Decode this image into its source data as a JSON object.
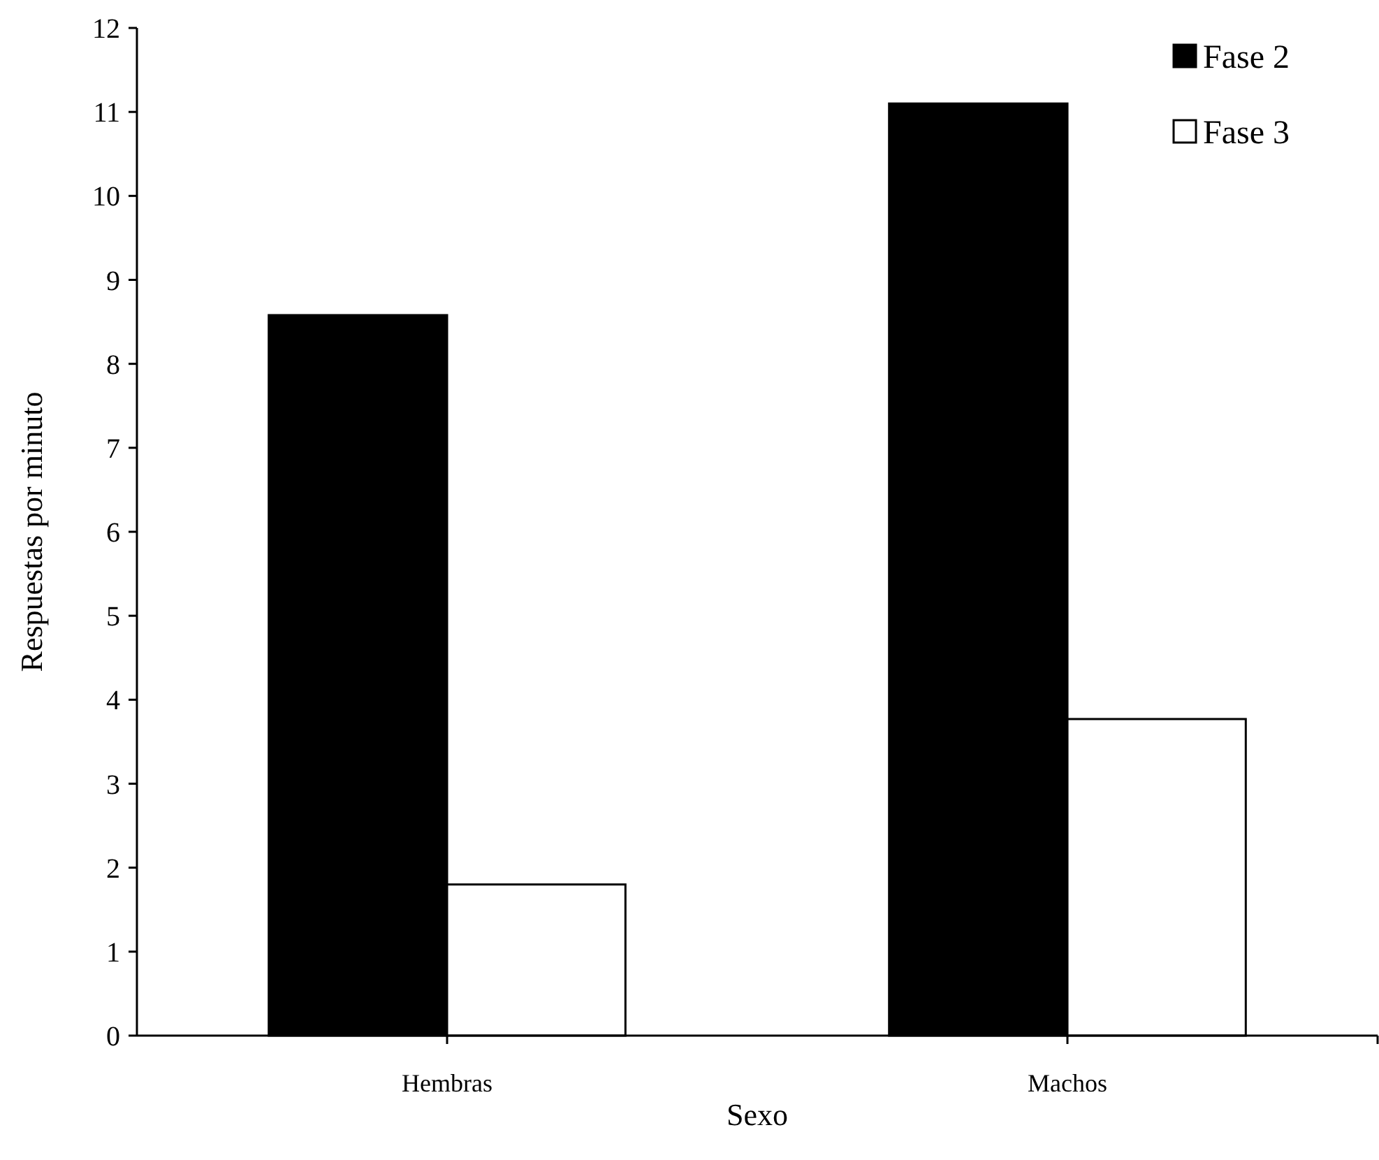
{
  "chart_data": {
    "type": "bar",
    "xlabel": "Sexo",
    "ylabel": "Respuestas por minuto",
    "categories": [
      "Hembras",
      "Machos"
    ],
    "series": [
      {
        "name": "Fase 2",
        "color": "#000000",
        "values": [
          8.58,
          11.1
        ]
      },
      {
        "name": "Fase 3",
        "color": "#ffffff",
        "values": [
          1.8,
          3.77
        ]
      }
    ],
    "ylim": [
      0,
      12
    ],
    "yticks": [
      0,
      1,
      2,
      3,
      4,
      5,
      6,
      7,
      8,
      9,
      10,
      11,
      12
    ],
    "grid": false,
    "legend": "top right"
  }
}
